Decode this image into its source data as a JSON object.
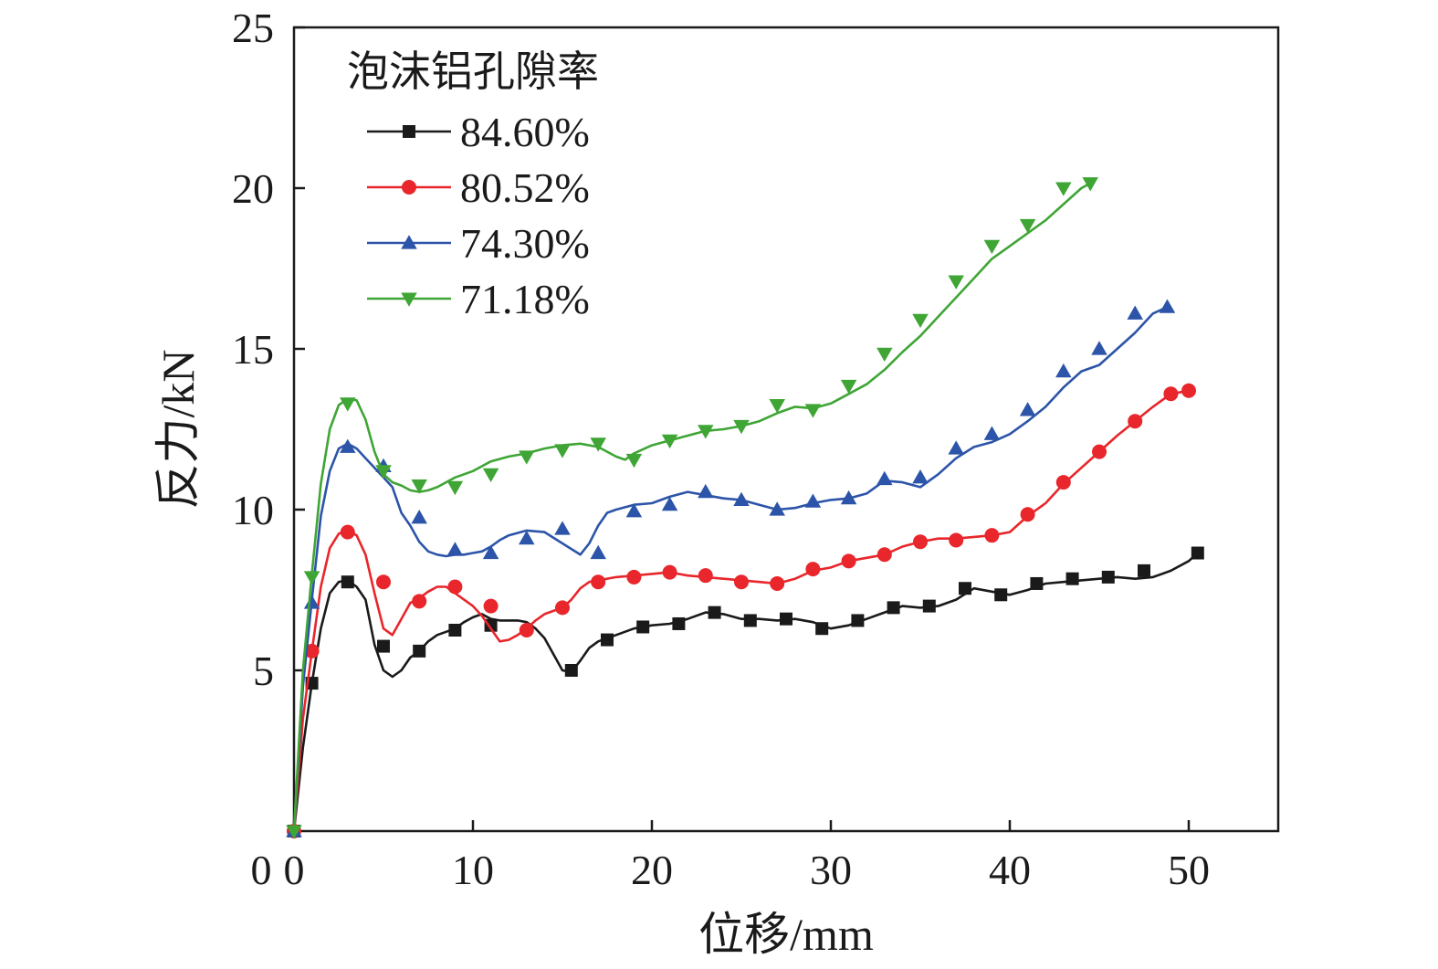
{
  "chart_data": {
    "type": "line",
    "xlabel": "位移/mm",
    "ylabel": "反力/kN",
    "xlim": [
      0,
      55
    ],
    "ylim": [
      0,
      25
    ],
    "xticks": [
      0,
      10,
      20,
      30,
      40,
      50
    ],
    "yticks": [
      5,
      10,
      15,
      20,
      25
    ],
    "xtick_labels": [
      "0",
      "10",
      "20",
      "30",
      "40",
      "50"
    ],
    "ytick_labels": [
      "5",
      "10",
      "15",
      "20",
      "25"
    ],
    "grid": false,
    "legend": {
      "title": "泡沫铝孔隙率",
      "placement": "top-left"
    },
    "series": [
      {
        "name": "84.60%",
        "color": "#1a1a1a",
        "marker": "square",
        "x": [
          0,
          0.5,
          1,
          1.5,
          2,
          2.5,
          3,
          3.5,
          4,
          4.5,
          5,
          5.5,
          6,
          6.5,
          7,
          7.5,
          8,
          8.5,
          9,
          9.5,
          10,
          10.5,
          11,
          11.5,
          12,
          12.5,
          13,
          13.5,
          14,
          14.5,
          15,
          15.5,
          16,
          16.5,
          17,
          17.5,
          18,
          19,
          20,
          21,
          22,
          23,
          24,
          25,
          26,
          27,
          28,
          29,
          30,
          31,
          32,
          33,
          34,
          35,
          36,
          37,
          38,
          39,
          40,
          41,
          42,
          43,
          44,
          45,
          46,
          47,
          48,
          49,
          50,
          50.5
        ],
        "y": [
          0,
          2.6,
          4.6,
          6.3,
          7.4,
          7.75,
          7.8,
          7.6,
          7.2,
          5.8,
          5.0,
          4.8,
          5.0,
          5.4,
          5.6,
          5.9,
          6.1,
          6.2,
          6.3,
          6.5,
          6.65,
          6.75,
          6.6,
          6.55,
          6.55,
          6.55,
          6.5,
          6.3,
          6.0,
          5.5,
          5.0,
          4.95,
          5.3,
          5.7,
          5.9,
          6.0,
          6.1,
          6.3,
          6.4,
          6.45,
          6.6,
          6.8,
          6.75,
          6.6,
          6.6,
          6.55,
          6.6,
          6.5,
          6.3,
          6.4,
          6.6,
          6.8,
          7.0,
          6.95,
          7.0,
          7.2,
          7.55,
          7.45,
          7.35,
          7.5,
          7.7,
          7.75,
          7.8,
          7.85,
          7.9,
          7.85,
          7.9,
          8.1,
          8.4,
          8.65
        ],
        "markers_x": [
          0,
          1,
          3,
          5,
          7,
          9,
          11,
          15.5,
          17.5,
          19.5,
          21.5,
          23.5,
          25.5,
          27.5,
          29.5,
          31.5,
          33.5,
          35.5,
          37.5,
          39.5,
          41.5,
          43.5,
          45.5,
          47.5,
          50.5
        ],
        "markers_y": [
          0,
          4.6,
          7.75,
          5.75,
          5.6,
          6.25,
          6.4,
          5.0,
          5.95,
          6.35,
          6.45,
          6.8,
          6.55,
          6.6,
          6.3,
          6.55,
          6.95,
          7.0,
          7.55,
          7.35,
          7.7,
          7.85,
          7.9,
          8.1,
          8.65
        ]
      },
      {
        "name": "80.52%",
        "color": "#e8262b",
        "marker": "circle",
        "x": [
          0,
          0.5,
          1,
          1.5,
          2,
          2.5,
          3,
          3.5,
          4,
          4.5,
          5,
          5.5,
          6,
          6.5,
          7,
          7.5,
          8,
          8.5,
          9,
          9.5,
          10,
          10.5,
          11,
          11.5,
          12,
          12.5,
          13,
          13.5,
          14,
          14.5,
          15,
          15.5,
          16,
          16.5,
          17,
          18,
          19,
          20,
          21,
          22,
          23,
          24,
          25,
          26,
          27,
          28,
          29,
          30,
          31,
          32,
          33,
          34,
          35,
          36,
          37,
          38,
          39,
          40,
          41,
          42,
          43,
          44,
          45,
          46,
          47,
          48,
          49,
          50
        ],
        "y": [
          0,
          3.5,
          5.6,
          7.6,
          8.8,
          9.25,
          9.35,
          9.2,
          8.6,
          7.4,
          6.3,
          6.1,
          6.6,
          7.1,
          7.25,
          7.45,
          7.6,
          7.6,
          7.4,
          7.2,
          7.0,
          6.7,
          6.3,
          5.9,
          5.95,
          6.1,
          6.3,
          6.55,
          6.75,
          6.85,
          6.95,
          7.2,
          7.55,
          7.75,
          7.8,
          7.9,
          7.95,
          8.0,
          8.05,
          7.95,
          7.9,
          7.85,
          7.8,
          7.75,
          7.7,
          7.85,
          8.1,
          8.2,
          8.4,
          8.5,
          8.6,
          8.85,
          9.0,
          9.1,
          9.1,
          9.15,
          9.2,
          9.3,
          9.8,
          10.2,
          10.8,
          11.3,
          11.8,
          12.3,
          12.75,
          13.2,
          13.6,
          13.7
        ],
        "markers_x": [
          0,
          1,
          3,
          5,
          7,
          9,
          11,
          13,
          15,
          17,
          19,
          21,
          23,
          25,
          27,
          29,
          31,
          33,
          35,
          37,
          39,
          41,
          43,
          45,
          47,
          49,
          50
        ],
        "markers_y": [
          0,
          5.6,
          9.3,
          7.75,
          7.15,
          7.6,
          7.0,
          6.25,
          6.95,
          7.75,
          7.9,
          8.05,
          7.95,
          7.75,
          7.7,
          8.15,
          8.4,
          8.6,
          9.0,
          9.05,
          9.2,
          9.85,
          10.85,
          11.8,
          12.75,
          13.6,
          13.7
        ]
      },
      {
        "name": "74.30%",
        "color": "#2c54a8",
        "marker": "triangle-up",
        "x": [
          0,
          0.5,
          1,
          1.5,
          2,
          2.5,
          3,
          3.5,
          4,
          4.5,
          5,
          5.5,
          6,
          6.5,
          7,
          7.5,
          8,
          8.5,
          9,
          9.5,
          10,
          10.5,
          11,
          11.5,
          12,
          13,
          14,
          15,
          16,
          16.5,
          17,
          17.5,
          18,
          19,
          20,
          21,
          22,
          23,
          24,
          25,
          26,
          27,
          28,
          29,
          30,
          31,
          32,
          33,
          34,
          35,
          36,
          37,
          38,
          39,
          40,
          41,
          42,
          43,
          44,
          45,
          46,
          47,
          48,
          48.8
        ],
        "y": [
          0,
          4.5,
          7.2,
          9.8,
          11.2,
          11.9,
          12.05,
          11.9,
          11.6,
          11.3,
          11.0,
          10.7,
          9.9,
          9.5,
          9.0,
          8.7,
          8.6,
          8.55,
          8.6,
          8.6,
          8.65,
          8.7,
          8.85,
          9.05,
          9.2,
          9.35,
          9.3,
          8.95,
          8.6,
          8.95,
          9.5,
          9.9,
          10.0,
          10.15,
          10.2,
          10.4,
          10.55,
          10.45,
          10.35,
          10.3,
          10.15,
          10.0,
          10.05,
          10.2,
          10.3,
          10.35,
          10.5,
          10.9,
          10.85,
          10.7,
          11.1,
          11.6,
          11.95,
          12.1,
          12.35,
          12.75,
          13.2,
          13.8,
          14.3,
          14.5,
          15.0,
          15.5,
          16.1,
          16.3
        ],
        "markers_x": [
          0,
          1,
          3,
          5,
          7,
          9,
          11,
          13,
          15,
          17,
          19,
          21,
          23,
          25,
          27,
          29,
          31,
          33,
          35,
          37,
          39,
          41,
          43,
          45,
          47,
          48.8
        ],
        "markers_y": [
          0,
          7.1,
          11.95,
          11.35,
          9.75,
          8.75,
          8.65,
          9.1,
          9.4,
          8.65,
          9.95,
          10.15,
          10.55,
          10.3,
          10.0,
          10.25,
          10.35,
          10.95,
          11.0,
          11.9,
          12.35,
          13.1,
          14.3,
          15.0,
          16.1,
          16.3
        ]
      },
      {
        "name": "71.18%",
        "color": "#3fa535",
        "marker": "triangle-down",
        "x": [
          0,
          0.5,
          1,
          1.5,
          2,
          2.5,
          3,
          3.5,
          4,
          4.5,
          5,
          5.5,
          6,
          6.5,
          7,
          7.5,
          8,
          8.5,
          9,
          9.5,
          10,
          11,
          12,
          13,
          14,
          15,
          16,
          17,
          18,
          18.5,
          19,
          20,
          21,
          22,
          23,
          24,
          25,
          26,
          27,
          28,
          29,
          30,
          31,
          32,
          33,
          34,
          35,
          36,
          37,
          38,
          39,
          40,
          41,
          42,
          43,
          44,
          44.5
        ],
        "y": [
          0,
          5.0,
          8.0,
          10.8,
          12.5,
          13.25,
          13.45,
          13.4,
          12.8,
          11.8,
          11.1,
          10.85,
          10.75,
          10.6,
          10.55,
          10.6,
          10.7,
          10.85,
          11.0,
          11.1,
          11.2,
          11.5,
          11.65,
          11.75,
          11.9,
          12.0,
          12.05,
          11.95,
          11.65,
          11.55,
          11.75,
          12.0,
          12.15,
          12.3,
          12.45,
          12.5,
          12.6,
          12.75,
          13.0,
          13.2,
          13.15,
          13.3,
          13.6,
          13.9,
          14.35,
          14.9,
          15.4,
          16.0,
          16.6,
          17.2,
          17.8,
          18.2,
          18.6,
          19.0,
          19.5,
          20.0,
          20.15
        ],
        "markers_x": [
          0,
          1,
          3,
          5,
          7,
          9,
          11,
          13,
          15,
          17,
          19,
          21,
          23,
          25,
          27,
          29,
          31,
          33,
          35,
          37,
          39,
          41,
          43,
          44.5
        ],
        "markers_y": [
          0,
          7.9,
          13.3,
          11.2,
          10.75,
          10.7,
          11.1,
          11.65,
          11.85,
          12.05,
          11.55,
          12.15,
          12.45,
          12.6,
          13.25,
          13.1,
          13.85,
          14.85,
          15.9,
          17.1,
          18.2,
          18.85,
          20.0,
          20.15
        ]
      }
    ]
  }
}
